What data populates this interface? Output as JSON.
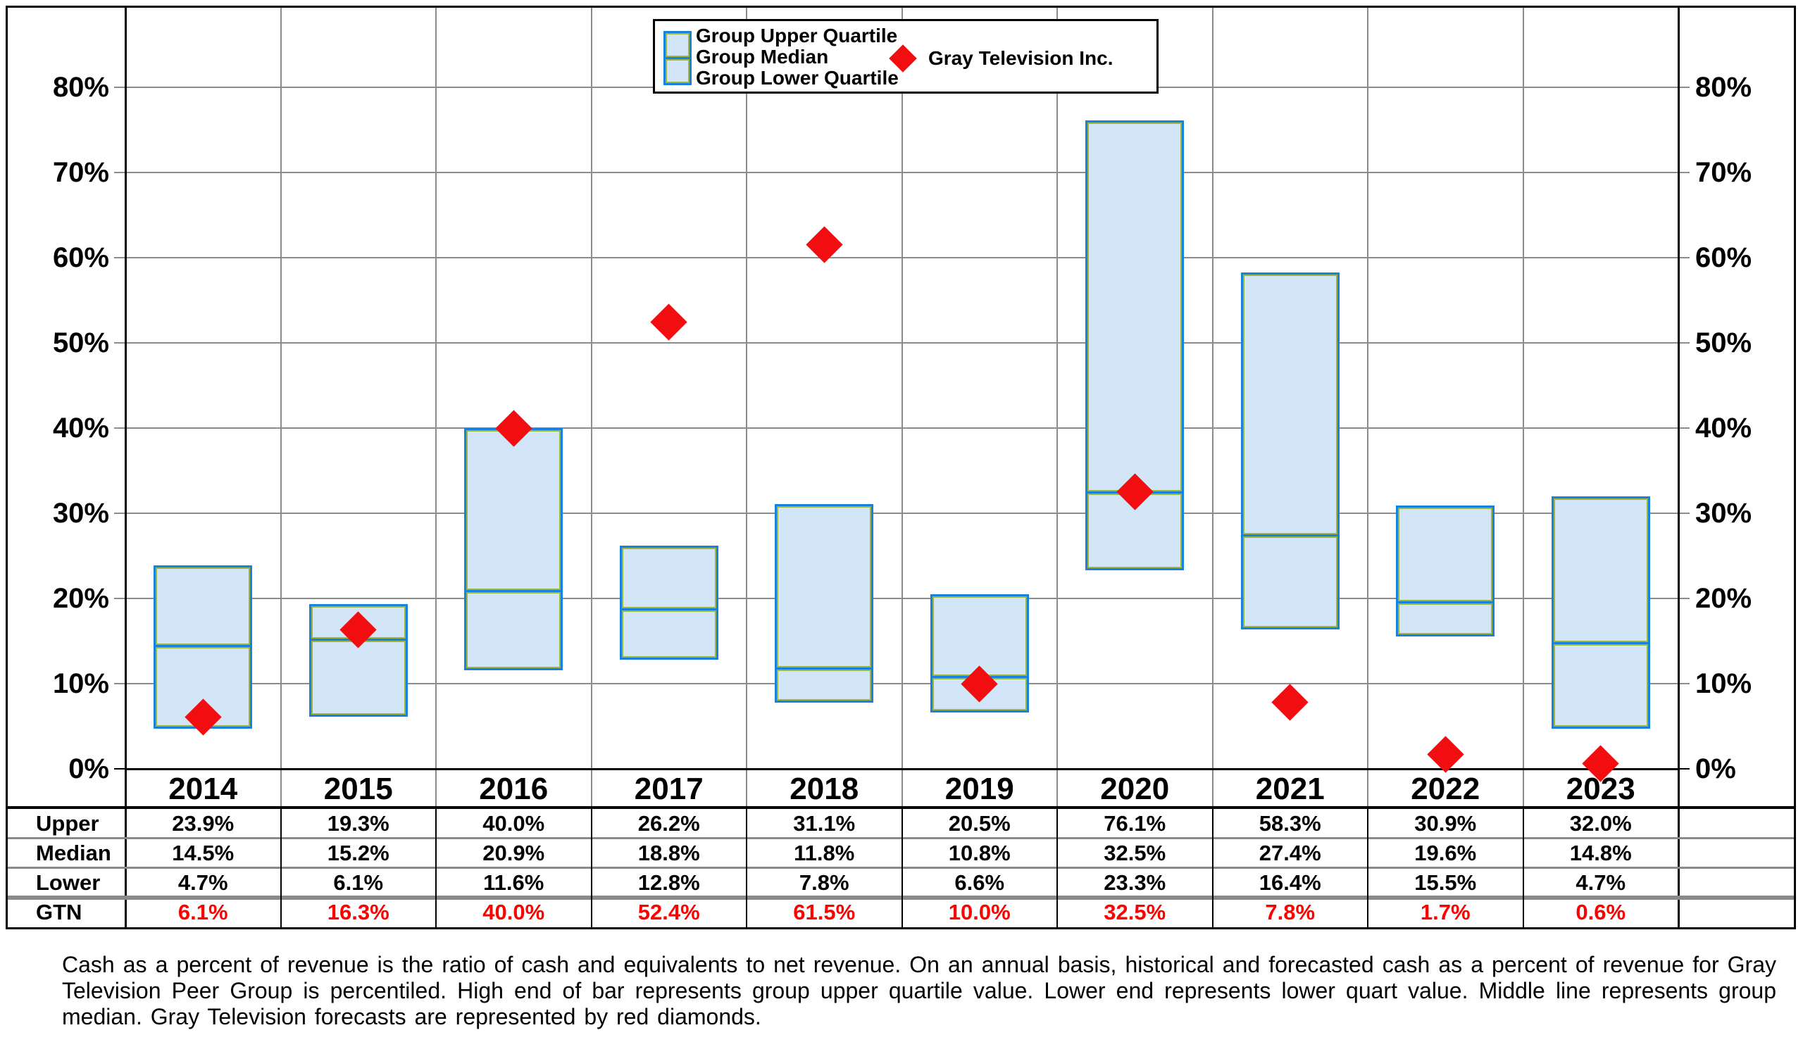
{
  "chart_data": {
    "type": "bar",
    "subtype": "floating-quartile-range-bars-with-diamond-markers",
    "title": "",
    "xlabel": "",
    "ylabel": "",
    "categories": [
      "2014",
      "2015",
      "2016",
      "2017",
      "2018",
      "2019",
      "2020",
      "2021",
      "2022",
      "2023"
    ],
    "series": [
      {
        "name": "Group Upper Quartile",
        "role": "bar-top",
        "values": [
          23.9,
          19.3,
          40.0,
          26.2,
          31.1,
          20.5,
          76.1,
          58.3,
          30.9,
          32.0
        ]
      },
      {
        "name": "Group Median",
        "role": "bar-middle-line",
        "values": [
          14.5,
          15.2,
          20.9,
          18.8,
          11.8,
          10.8,
          32.5,
          27.4,
          19.6,
          14.8
        ]
      },
      {
        "name": "Group Lower Quartile",
        "role": "bar-bottom",
        "values": [
          4.7,
          6.1,
          11.6,
          12.8,
          7.8,
          6.6,
          23.3,
          16.4,
          15.5,
          4.7
        ]
      },
      {
        "name": "Gray Television Inc.",
        "role": "marker",
        "values": [
          6.1,
          16.3,
          40.0,
          52.4,
          61.5,
          10.0,
          32.5,
          7.8,
          1.7,
          0.6
        ]
      }
    ],
    "ylim": [
      0,
      89
    ],
    "yticks": [
      {
        "v": 0,
        "label": "0%"
      },
      {
        "v": 10,
        "label": "10%"
      },
      {
        "v": 20,
        "label": "20%"
      },
      {
        "v": 30,
        "label": "30%"
      },
      {
        "v": 40,
        "label": "40%"
      },
      {
        "v": 50,
        "label": "50%"
      },
      {
        "v": 60,
        "label": "60%"
      },
      {
        "v": 70,
        "label": "70%"
      },
      {
        "v": 80,
        "label": "80%"
      }
    ],
    "y_axis_mirrored_right": true,
    "grid": true,
    "legend_position": "top-center"
  },
  "legend": {
    "upper": "Group Upper Quartile",
    "median": "Group Median",
    "lower": "Group Lower Quartile",
    "marker": "Gray Television Inc."
  },
  "table": {
    "row_labels": [
      "Upper",
      "Median",
      "Lower",
      "GTN"
    ],
    "rows": [
      [
        "23.9%",
        "19.3%",
        "40.0%",
        "26.2%",
        "31.1%",
        "20.5%",
        "76.1%",
        "58.3%",
        "30.9%",
        "32.0%"
      ],
      [
        "14.5%",
        "15.2%",
        "20.9%",
        "18.8%",
        "11.8%",
        "10.8%",
        "32.5%",
        "27.4%",
        "19.6%",
        "14.8%"
      ],
      [
        "4.7%",
        "6.1%",
        "11.6%",
        "12.8%",
        "7.8%",
        "6.6%",
        "23.3%",
        "16.4%",
        "15.5%",
        "4.7%"
      ],
      [
        "6.1%",
        "16.3%",
        "40.0%",
        "52.4%",
        "61.5%",
        "10.0%",
        "32.5%",
        "7.8%",
        "1.7%",
        "0.6%"
      ]
    ]
  },
  "footnote": "Cash as a percent of revenue is the ratio of cash and equivalents to net revenue.  On an annual basis, historical and forecasted cash as a percent of revenue for Gray Television Peer Group is percentiled.  High end of bar represents group upper quartile value.  Lower end represents lower quart value.  Middle line represents group median.  Gray Television forecasts are represented by red diamonds.",
  "colors": {
    "bar_fill": "#D2E6F8",
    "bar_border": "#1781E0",
    "bar_inner_accent": "#9FB63C",
    "diamond_red": "#F20D11",
    "gridline": "#8C8C8C",
    "axis_black": "#000000",
    "gtn_text": "#FF0000"
  }
}
